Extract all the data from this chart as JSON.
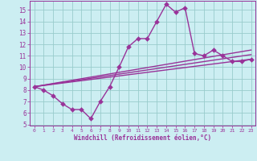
{
  "xlabel": "Windchill (Refroidissement éolien,°C)",
  "ylabel": "",
  "bg_color": "#cceef2",
  "grid_color": "#99cccc",
  "line_color": "#993399",
  "x_values": [
    0,
    1,
    2,
    3,
    4,
    5,
    6,
    7,
    8,
    9,
    10,
    11,
    12,
    13,
    14,
    15,
    16,
    17,
    18,
    19,
    20,
    21,
    22,
    23
  ],
  "y_main": [
    8.3,
    8.0,
    7.5,
    6.8,
    6.3,
    6.3,
    5.5,
    7.0,
    8.3,
    10.0,
    11.8,
    12.5,
    12.5,
    14.0,
    15.5,
    14.8,
    15.2,
    11.2,
    11.0,
    11.5,
    11.0,
    10.5,
    10.5,
    10.7
  ],
  "y_line1_start": 8.3,
  "y_line1_end": 10.7,
  "y_line2_start": 8.3,
  "y_line2_end": 11.1,
  "y_line3_start": 8.3,
  "y_line3_end": 11.5,
  "ylim_min": 5,
  "ylim_max": 15.5,
  "xlim_min": -0.5,
  "xlim_max": 23.5,
  "yticks": [
    5,
    6,
    7,
    8,
    9,
    10,
    11,
    12,
    13,
    14,
    15
  ],
  "xticks": [
    0,
    1,
    2,
    3,
    4,
    5,
    6,
    7,
    8,
    9,
    10,
    11,
    12,
    13,
    14,
    15,
    16,
    17,
    18,
    19,
    20,
    21,
    22,
    23
  ],
  "markersize": 3,
  "linewidth": 1.0
}
